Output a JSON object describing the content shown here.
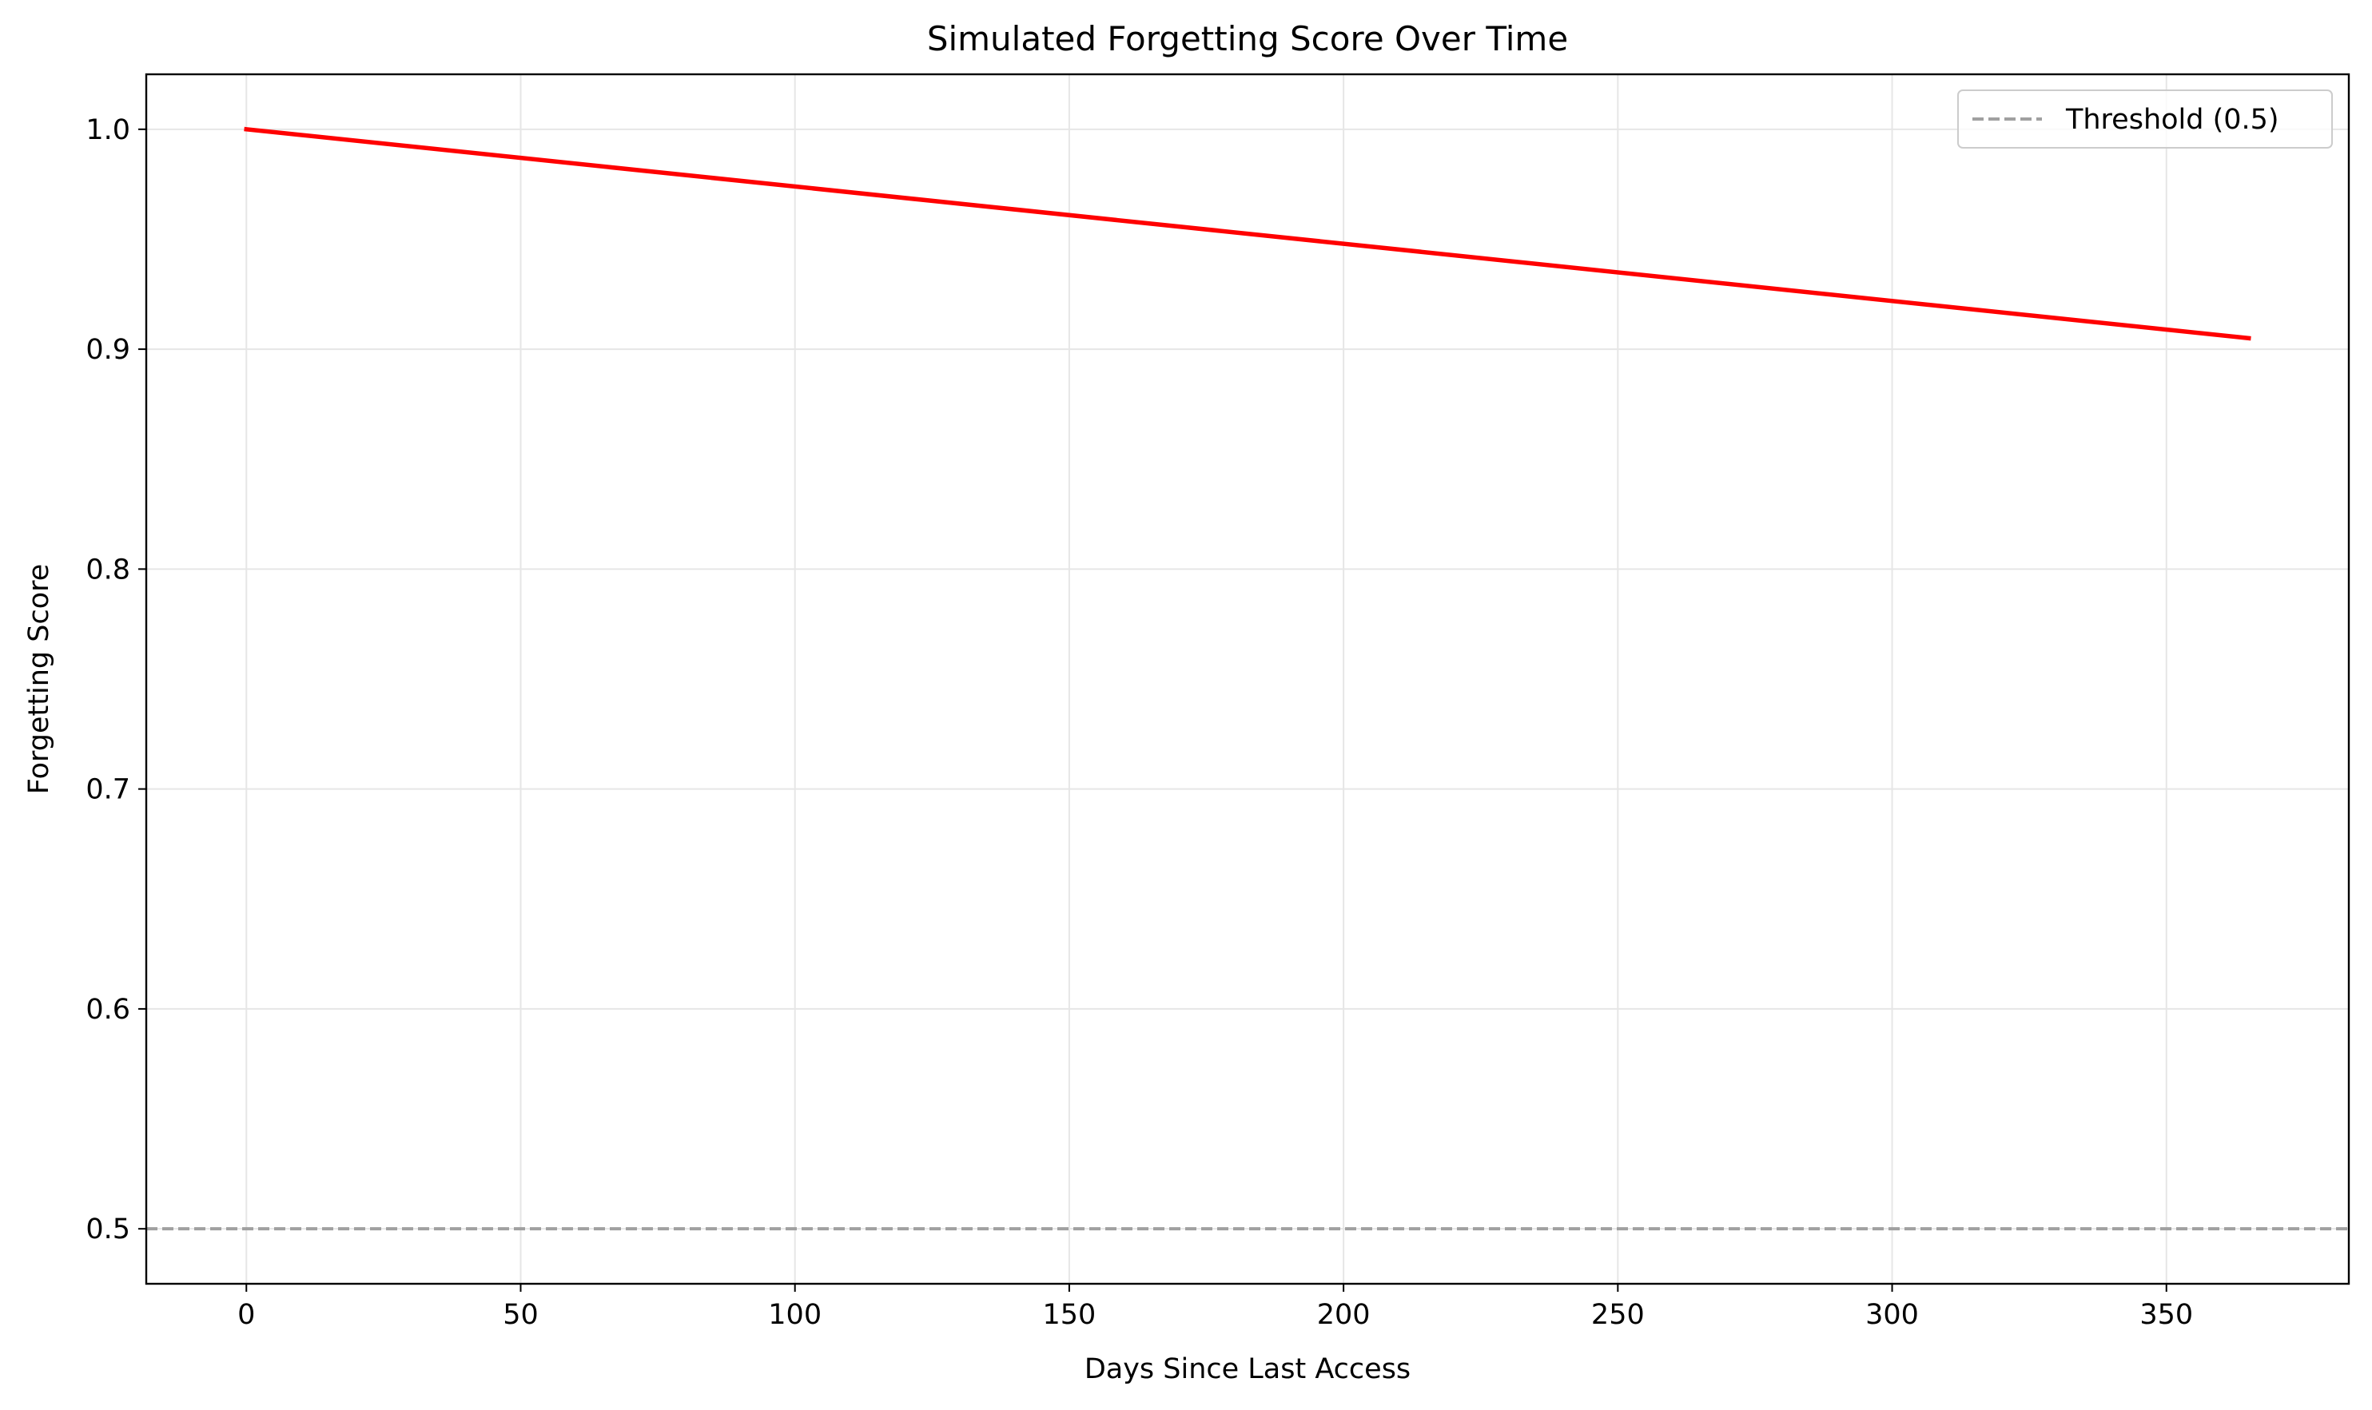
{
  "chart_data": {
    "type": "line",
    "title": "Simulated Forgetting Score Over Time",
    "xlabel": "Days Since Last Access",
    "ylabel": "Forgetting Score",
    "xlim": [
      -18.25,
      383.25
    ],
    "ylim": [
      0.475,
      1.025
    ],
    "xticks": [
      0,
      50,
      100,
      150,
      200,
      250,
      300,
      350
    ],
    "yticks": [
      0.5,
      0.6,
      0.7,
      0.8,
      0.9,
      1.0
    ],
    "xtick_labels": [
      "0",
      "50",
      "100",
      "150",
      "200",
      "250",
      "300",
      "350"
    ],
    "ytick_labels": [
      "0.5",
      "0.6",
      "0.7",
      "0.8",
      "0.9",
      "1.0"
    ],
    "grid": true,
    "legend_position": "upper right",
    "series": [
      {
        "color": "#ff0000",
        "style": "solid",
        "x": [
          0,
          365
        ],
        "y": [
          1.0,
          0.905
        ]
      }
    ],
    "reference_lines": [
      {
        "orientation": "horizontal",
        "y": 0.5,
        "label": "Threshold (0.5)",
        "color": "#a0a0a0",
        "style": "dashed"
      }
    ]
  }
}
